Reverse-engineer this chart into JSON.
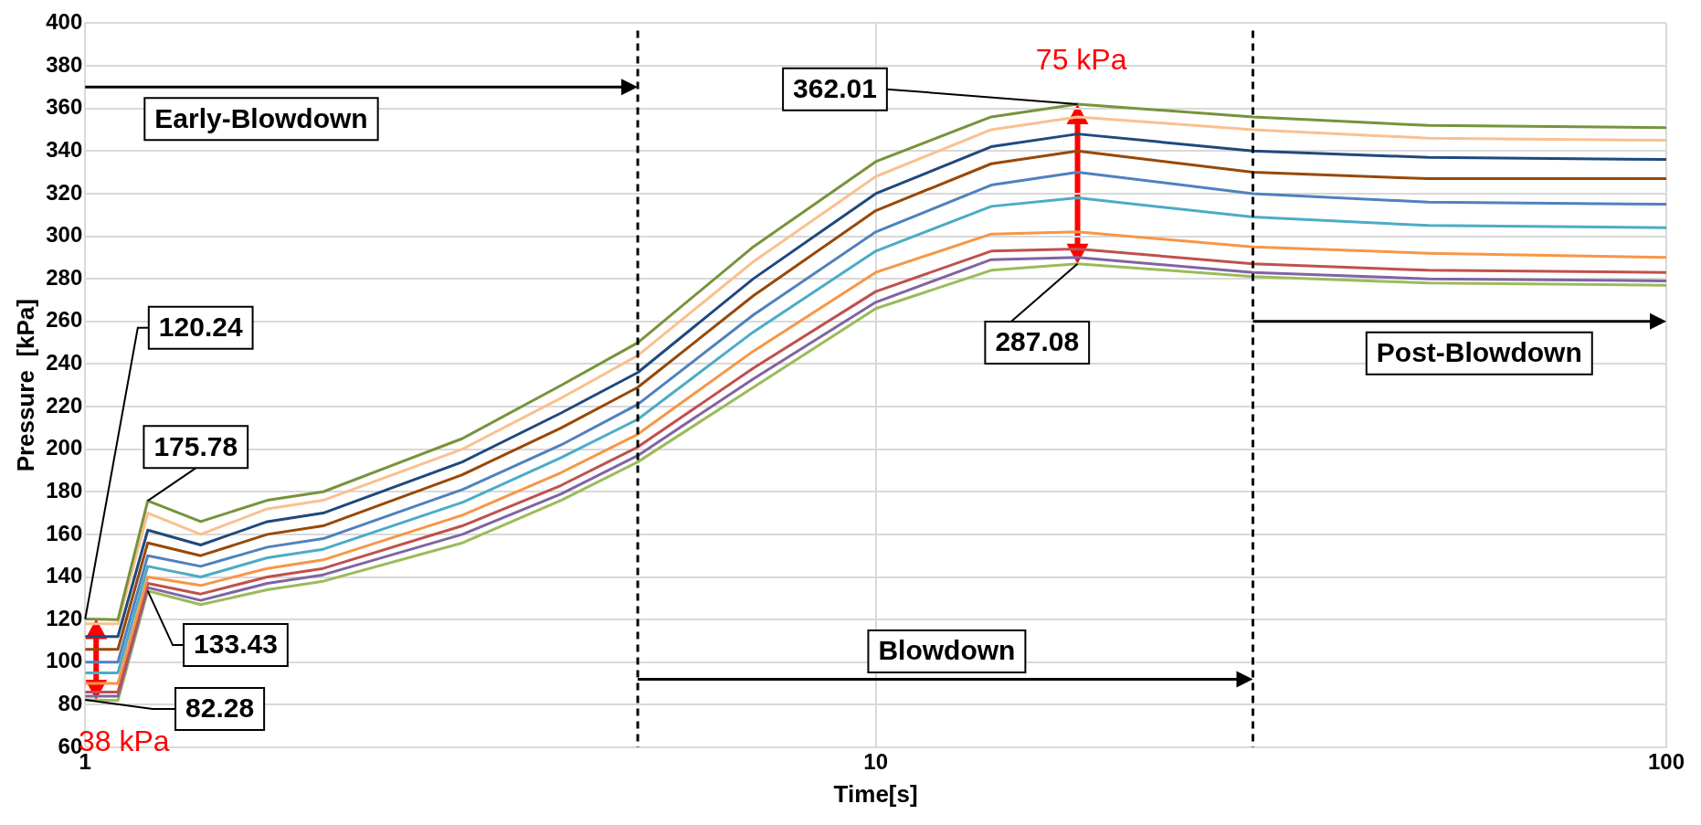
{
  "chart_data": {
    "type": "line",
    "xlabel": "Time[s]",
    "ylabel": "Pressure  [kPa]",
    "x": [
      1,
      1.1,
      1.2,
      1.4,
      1.7,
      2,
      3,
      4,
      5,
      7,
      10,
      14,
      18,
      30,
      50,
      100
    ],
    "series": [
      {
        "color": "#77933c",
        "values": [
          120.24,
          120,
          175.78,
          166,
          176,
          180,
          205,
          230,
          250,
          295,
          335,
          356,
          362.01,
          356,
          352,
          351
        ]
      },
      {
        "color": "#fac090",
        "values": [
          118,
          118,
          170,
          160,
          172,
          176,
          200,
          224,
          244,
          288,
          328,
          350,
          356,
          350,
          346,
          345
        ]
      },
      {
        "color": "#1f497d",
        "values": [
          112,
          112,
          162,
          155,
          166,
          170,
          194,
          217,
          236,
          280,
          320,
          342,
          348,
          340,
          337,
          336
        ]
      },
      {
        "color": "#984807",
        "values": [
          106,
          106,
          156,
          150,
          160,
          164,
          188,
          210,
          229,
          272,
          312,
          334,
          340,
          330,
          327,
          327
        ]
      },
      {
        "color": "#4f81bd",
        "values": [
          100,
          100,
          150,
          145,
          154,
          158,
          181,
          202,
          221,
          263,
          302,
          324,
          330,
          320,
          316,
          315
        ]
      },
      {
        "color": "#4bacc6",
        "values": [
          95,
          95,
          145,
          140,
          149,
          153,
          175,
          196,
          214,
          255,
          293,
          314,
          318,
          309,
          305,
          304
        ]
      },
      {
        "color": "#f79646",
        "values": [
          90,
          90,
          140,
          136,
          144,
          148,
          169,
          189,
          207,
          246,
          283,
          301,
          302,
          295,
          292,
          290
        ]
      },
      {
        "color": "#c0504d",
        "values": [
          86,
          86,
          137,
          132,
          140,
          144,
          164,
          183,
          201,
          238,
          274,
          293,
          294,
          287,
          284,
          283
        ]
      },
      {
        "color": "#8064a2",
        "values": [
          84,
          84,
          135,
          129,
          137,
          141,
          160,
          179,
          197,
          233,
          269,
          289,
          290,
          283,
          280,
          279
        ]
      },
      {
        "color": "#9bbb59",
        "values": [
          82.28,
          82,
          133.43,
          127,
          134,
          138,
          156,
          176,
          194,
          229,
          266,
          284,
          287.08,
          281,
          278,
          277
        ]
      }
    ],
    "log": "x",
    "xlim": [
      1,
      100
    ],
    "xticks": [
      1,
      10,
      100
    ],
    "ylim": [
      60,
      400
    ],
    "yticks": [
      60,
      80,
      100,
      120,
      140,
      160,
      180,
      200,
      220,
      240,
      260,
      280,
      300,
      320,
      340,
      360,
      380,
      400
    ],
    "grid": true,
    "legend": false,
    "marker": "none",
    "line_style": "solid",
    "ref_lines": [
      {
        "axis": "x",
        "value": 5,
        "color": "#000000",
        "line_style": "dashed"
      },
      {
        "axis": "x",
        "value": 30,
        "color": "#000000",
        "line_style": "dashed"
      }
    ],
    "annotations": [
      "Early-Blowdown",
      "Blowdown",
      "Post-Blowdown",
      {
        "text": "362.01",
        "x": 18,
        "y": 362.01
      },
      {
        "text": "287.08",
        "x": 18,
        "y": 287.08
      },
      {
        "text": "120.24",
        "x": 1,
        "y": 120.24
      },
      {
        "text": "175.78",
        "x": 1.2,
        "y": 175.78
      },
      {
        "text": "133.43",
        "x": 1.2,
        "y": 133.43
      },
      {
        "text": "82.28",
        "x": 1,
        "y": 82.28
      },
      "75 kPa",
      "38 kPa"
    ]
  }
}
